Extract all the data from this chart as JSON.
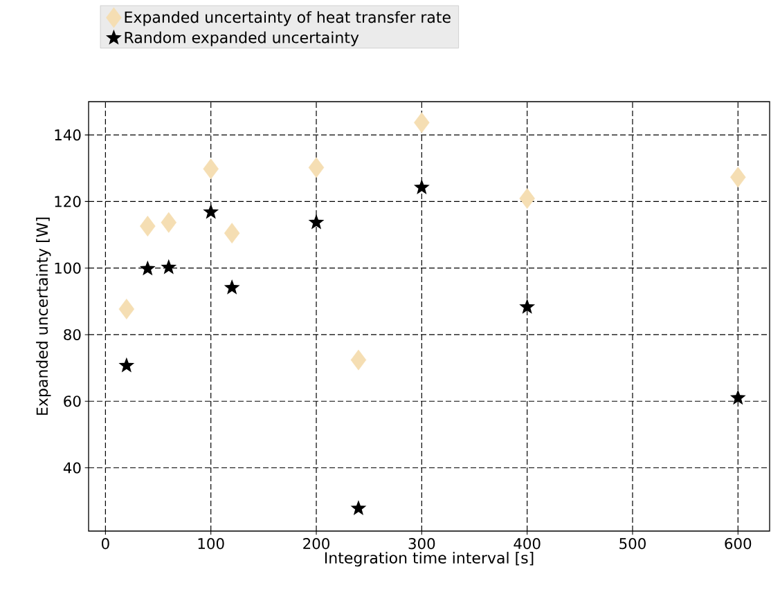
{
  "chart_data": {
    "type": "scatter",
    "xlabel": "Integration time interval [s]",
    "ylabel": "Expanded uncertainty [W]",
    "x": [
      20,
      40,
      60,
      100,
      120,
      200,
      240,
      300,
      400,
      600
    ],
    "series": [
      {
        "name": "Expanded uncertainty of heat transfer rate",
        "color": "#f5deb3",
        "marker": "diamond",
        "values": [
          87.7,
          112.6,
          113.7,
          129.8,
          110.5,
          130.2,
          72.4,
          143.7,
          120.9,
          127.3
        ]
      },
      {
        "name": "Random expanded uncertainty",
        "color": "#000000",
        "marker": "star",
        "values": [
          70.7,
          99.8,
          100.2,
          116.8,
          94.1,
          113.7,
          27.8,
          124.2,
          88.3,
          61.0
        ]
      }
    ],
    "xlim": [
      -16,
      630
    ],
    "ylim": [
      21,
      150
    ],
    "xticks": [
      0,
      100,
      200,
      300,
      400,
      500,
      600
    ],
    "yticks": [
      40,
      60,
      80,
      100,
      120,
      140
    ],
    "grid": true,
    "legend": "top"
  }
}
